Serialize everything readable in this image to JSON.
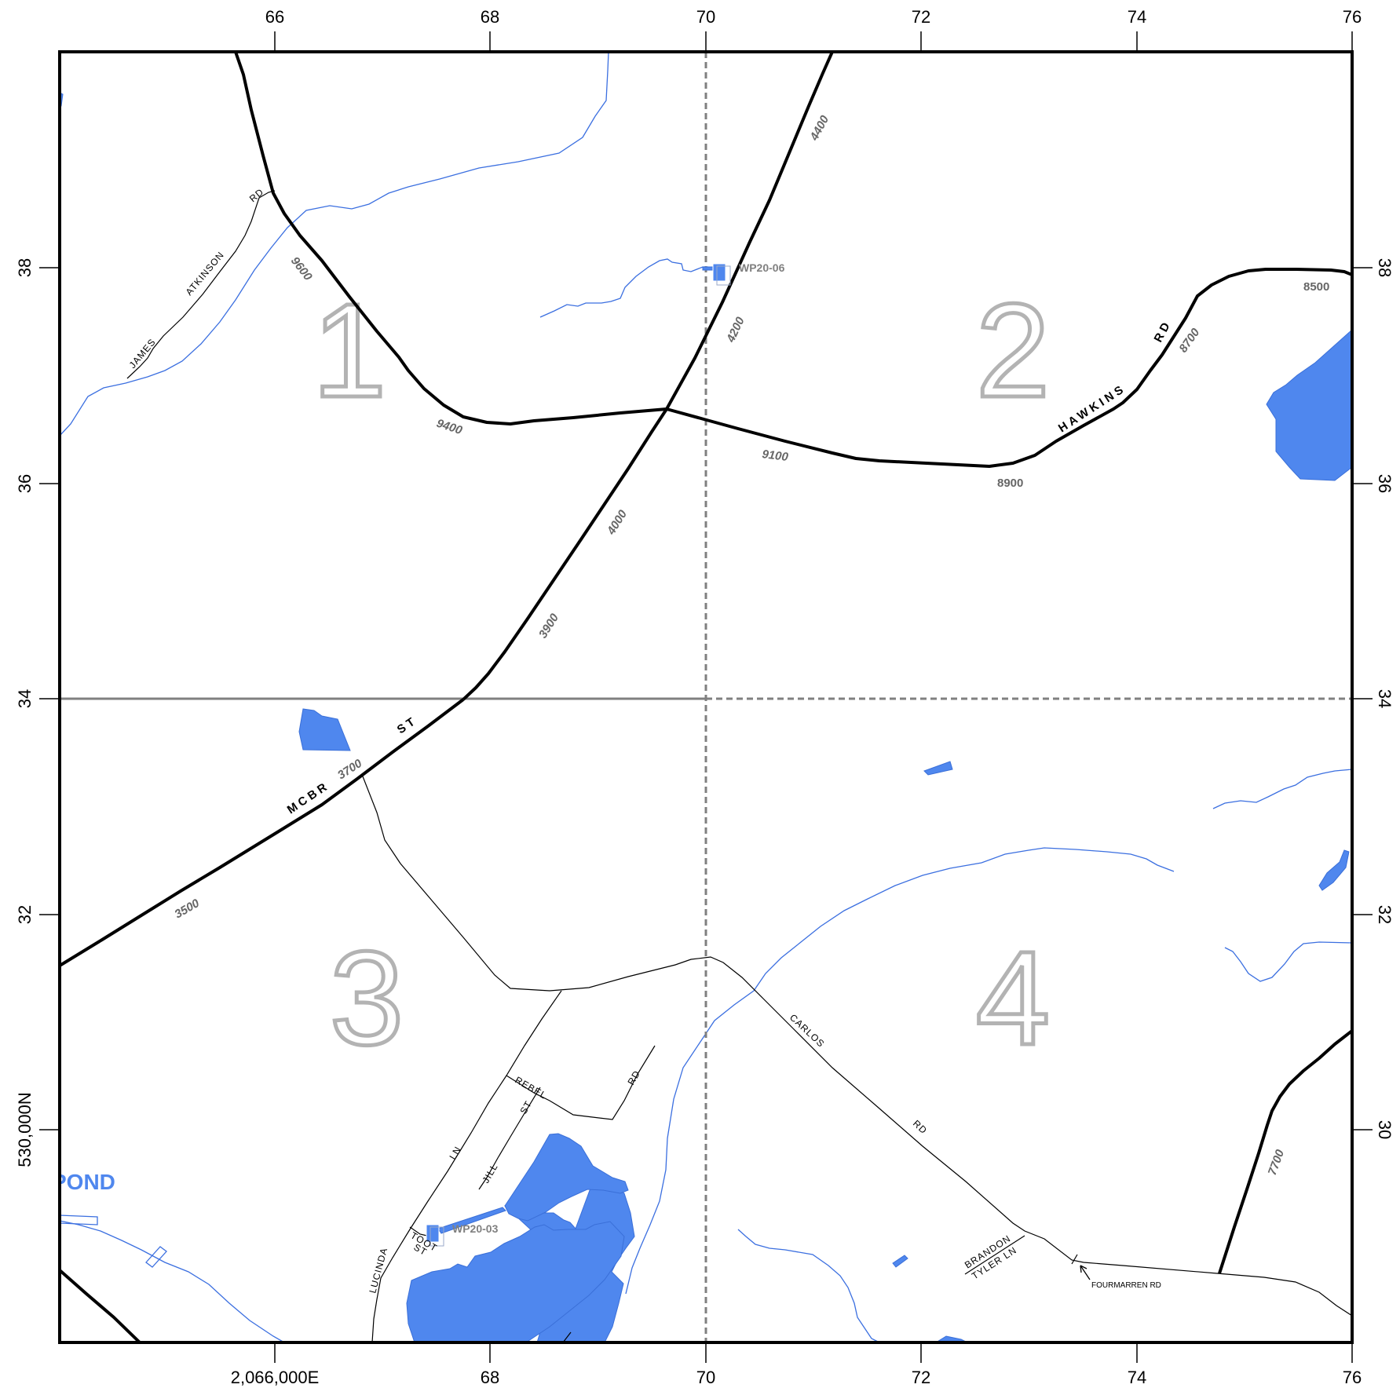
{
  "axes": {
    "top_ticks": [
      "66",
      "68",
      "70",
      "72",
      "74",
      "76"
    ],
    "bottom_ticks": [
      "2,066,000E",
      "68",
      "70",
      "72",
      "74",
      "76"
    ],
    "left_ticks": [
      "38",
      "36",
      "34",
      "32",
      "530,000N"
    ],
    "right_ticks": [
      "38",
      "36",
      "34",
      "32",
      "30"
    ]
  },
  "quadrants": [
    "1",
    "2",
    "3",
    "4"
  ],
  "roads": {
    "mcbride_a": "MCBR",
    "mcbride_b": "ST",
    "hawkins_a": "HAWKINS",
    "hawkins_b": "RD",
    "james": "JAMES",
    "atkinson": "ATKINSON",
    "atkinson_rd": "RD",
    "rebel": "REBEL",
    "rebel_rd": "RD",
    "carlos": "CARLOS",
    "carlos_rd": "RD",
    "jill": "JILL",
    "jill_st": "ST",
    "lucinda": "LUCINDA",
    "lucinda_ln": "LN",
    "toot": "TOOT",
    "toot_st": "ST",
    "brandon": "BRANDON",
    "tyler": "TYLER LN",
    "fourmarren": "FOURMARREN RD"
  },
  "addresses": {
    "a9600": "9600",
    "a9400": "9400",
    "a4400": "4400",
    "a4200": "4200",
    "a4000": "4000",
    "a3900": "3900",
    "a3700": "3700",
    "a3500": "3500",
    "a9100": "9100",
    "a8900": "8900",
    "a8700": "8700",
    "a8500": "8500",
    "a7700": "7700"
  },
  "wells": {
    "wp20_06": "WP20-06",
    "wp20_03": "WP20-03"
  },
  "water_label": "POND",
  "colors": {
    "water": "#4f87ee",
    "stream": "#3b6fe0",
    "grid": "#808080",
    "quadrant_outline": "#b3b3b3"
  }
}
